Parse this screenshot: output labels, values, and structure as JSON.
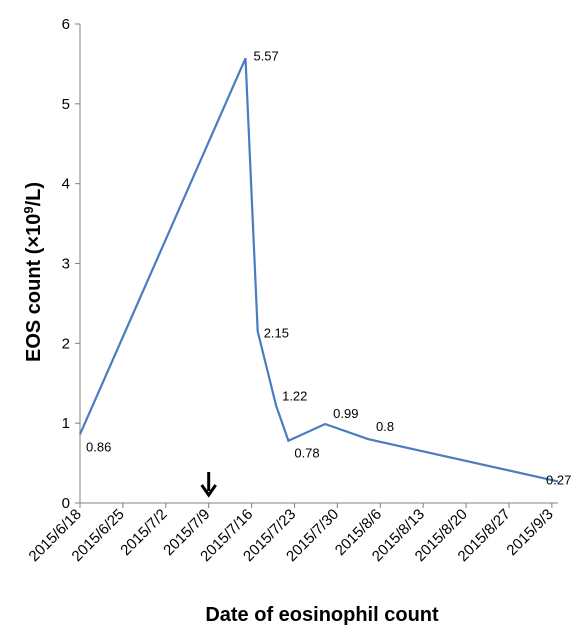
{
  "chart_data": {
    "type": "line",
    "title": "",
    "xlabel": "Date of eosinophil count",
    "ylabel_main": "EOS count (×10",
    "ylabel_sup": "9",
    "ylabel_end": "/L)",
    "ylim": [
      0,
      6
    ],
    "yticks": [
      "0",
      "1",
      "2",
      "3",
      "4",
      "5",
      "6"
    ],
    "xlim_days": [
      0,
      78
    ],
    "xtick_labels": [
      "2015/6/18",
      "2015/6/25",
      "2015/7/2",
      "2015/7/9",
      "2015/7/16",
      "2015/7/23",
      "2015/7/30",
      "2015/8/6",
      "2015/8/13",
      "2015/8/20",
      "2015/8/27",
      "2015/9/3"
    ],
    "series": [
      {
        "color": "#4a7cc1",
        "points": [
          {
            "x": "2015/6/18",
            "y": 0.86,
            "label": "0.86"
          },
          {
            "x": "2015/7/15",
            "y": 5.57,
            "label": "5.57"
          },
          {
            "x": "2015/7/17",
            "y": 2.15,
            "label": "2.15"
          },
          {
            "x": "2015/7/20",
            "y": 1.22,
            "label": "1.22"
          },
          {
            "x": "2015/7/22",
            "y": 0.78,
            "label": "0.78"
          },
          {
            "x": "2015/7/28",
            "y": 0.99,
            "label": "0.99"
          },
          {
            "x": "2015/8/4",
            "y": 0.8,
            "label": "0.8"
          },
          {
            "x": "2015/9/4",
            "y": 0.27,
            "label": "0.27"
          }
        ]
      }
    ],
    "annotations": [
      {
        "type": "arrow-down",
        "x": "2015/7/9"
      }
    ]
  }
}
